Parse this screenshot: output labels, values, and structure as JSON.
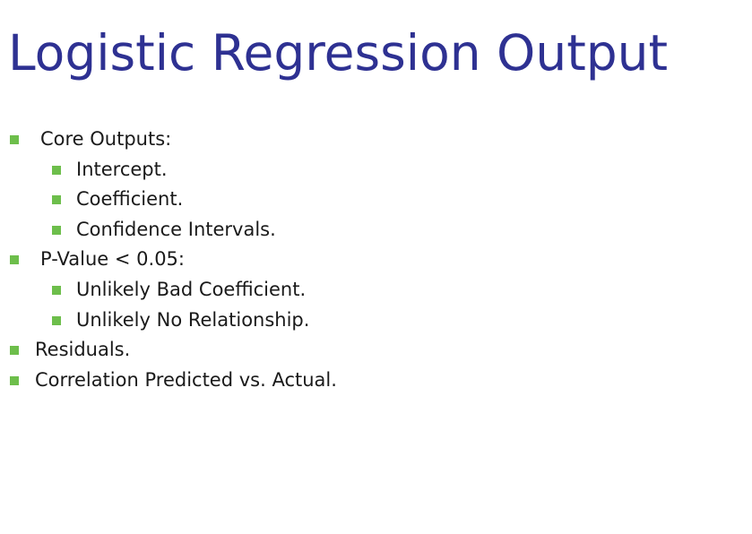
{
  "slide": {
    "title": "Logistic Regression Output",
    "bullet_color": "#6DBE4B",
    "title_color": "#2E3192",
    "items": [
      {
        "level": 1,
        "text": "Core Outputs:",
        "indent": true
      },
      {
        "level": 2,
        "text": "Intercept."
      },
      {
        "level": 2,
        "text": "Coefficient."
      },
      {
        "level": 2,
        "text": "Confidence Intervals."
      },
      {
        "level": 1,
        "text": "P-Value < 0.05:",
        "indent": true
      },
      {
        "level": 2,
        "text": "Unlikely Bad Coefficient."
      },
      {
        "level": 2,
        "text": "Unlikely No Relationship."
      },
      {
        "level": 1,
        "text": "Residuals."
      },
      {
        "level": 1,
        "text": "Correlation Predicted vs. Actual."
      }
    ]
  }
}
